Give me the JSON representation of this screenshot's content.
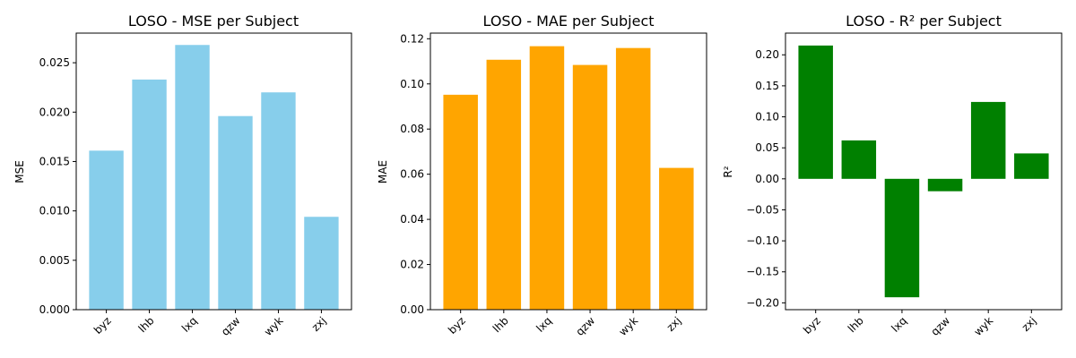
{
  "chart_data": [
    {
      "type": "bar",
      "title": "LOSO - MSE per Subject",
      "xlabel": "",
      "ylabel": "MSE",
      "categories": [
        "byz",
        "lhb",
        "lxq",
        "qzw",
        "wyk",
        "zxj"
      ],
      "values": [
        0.0161,
        0.0233,
        0.0268,
        0.0196,
        0.022,
        0.0094
      ],
      "ylim": [
        0,
        0.028
      ],
      "yticks": [
        0,
        0.005,
        0.01,
        0.015,
        0.02,
        0.025
      ],
      "ytick_labels": [
        "0.000",
        "0.005",
        "0.010",
        "0.015",
        "0.020",
        "0.025"
      ],
      "color": "#87ceeb",
      "grid": false,
      "xtick_rotation": 45
    },
    {
      "type": "bar",
      "title": "LOSO - MAE per Subject",
      "xlabel": "",
      "ylabel": "MAE",
      "categories": [
        "byz",
        "lhb",
        "lxq",
        "qzw",
        "wyk",
        "zxj"
      ],
      "values": [
        0.0952,
        0.1107,
        0.1167,
        0.1084,
        0.1159,
        0.0628
      ],
      "ylim": [
        0,
        0.1225
      ],
      "yticks": [
        0,
        0.02,
        0.04,
        0.06,
        0.08,
        0.1,
        0.12
      ],
      "ytick_labels": [
        "0.00",
        "0.02",
        "0.04",
        "0.06",
        "0.08",
        "0.10",
        "0.12"
      ],
      "color": "#ffa500",
      "grid": false,
      "xtick_rotation": 45
    },
    {
      "type": "bar",
      "title": "LOSO - R² per Subject",
      "xlabel": "",
      "ylabel": "R²",
      "categories": [
        "byz",
        "lhb",
        "lxq",
        "qzw",
        "wyk",
        "zxj"
      ],
      "values": [
        0.215,
        0.062,
        -0.191,
        -0.02,
        0.124,
        0.041
      ],
      "ylim": [
        -0.211,
        0.235
      ],
      "yticks": [
        -0.2,
        -0.15,
        -0.1,
        -0.05,
        0.0,
        0.05,
        0.1,
        0.15,
        0.2
      ],
      "ytick_labels": [
        "−0.20",
        "−0.15",
        "−0.10",
        "−0.05",
        "0.00",
        "0.05",
        "0.10",
        "0.15",
        "0.20"
      ],
      "color": "#008000",
      "grid": false,
      "xtick_rotation": 45
    }
  ]
}
